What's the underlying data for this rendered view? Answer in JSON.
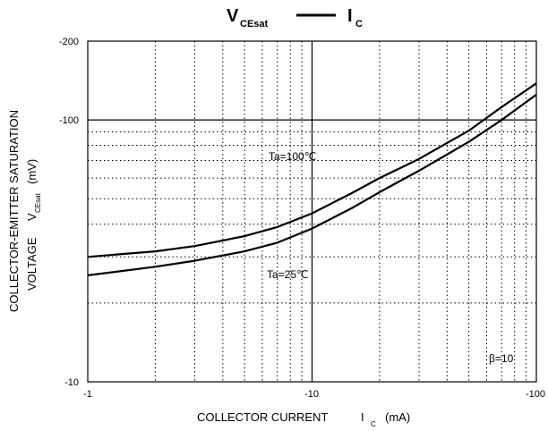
{
  "chart_data": {
    "type": "line",
    "title": {
      "left_main": "V",
      "left_sub": "CEsat",
      "right_main": "I",
      "right_sub": "C"
    },
    "xlabel": {
      "main": "COLLECTOR CURRENT",
      "sym": "I",
      "sub": "C",
      "unit": "(mA)"
    },
    "ylabel": {
      "line1": "COLLECTOR-EMITTER SATURATION",
      "line2_main": "VOLTAGE",
      "line2_sym": "V",
      "line2_sub": "CEsat",
      "line2_unit": "(mV)"
    },
    "x_scale": "log",
    "y_scale": "log",
    "x_reversed_negative": true,
    "y_reversed_negative": true,
    "xlim": [
      -1,
      -100
    ],
    "ylim": [
      -10,
      -200
    ],
    "x_ticks": [
      "-1",
      "-10",
      "-100"
    ],
    "y_ticks": [
      "-10",
      "-100",
      "-200"
    ],
    "grid": "dotted minor, solid major",
    "series": [
      {
        "name": "Ta=100℃",
        "x": [
          -1,
          -2,
          -3,
          -5,
          -7,
          -10,
          -15,
          -20,
          -30,
          -50,
          -70,
          -100
        ],
        "y": [
          -30,
          -31.5,
          -33,
          -36,
          -39,
          -44,
          -52.5,
          -60,
          -71,
          -91,
          -112,
          -138
        ]
      },
      {
        "name": "Ta=25℃",
        "x": [
          -1,
          -2,
          -3,
          -5,
          -7,
          -10,
          -15,
          -20,
          -30,
          -50,
          -70,
          -100
        ],
        "y": [
          -25.5,
          -27.5,
          -29,
          -31.5,
          -34,
          -38.5,
          -46,
          -53,
          -64,
          -82.5,
          -100,
          -125
        ]
      }
    ],
    "annotations": [
      {
        "text": "Ta=100℃",
        "x": -10,
        "y": -70
      },
      {
        "text": "Ta=25℃",
        "x": -9,
        "y": -27
      },
      {
        "text": "β=10",
        "x": -80,
        "y": -12
      }
    ]
  }
}
